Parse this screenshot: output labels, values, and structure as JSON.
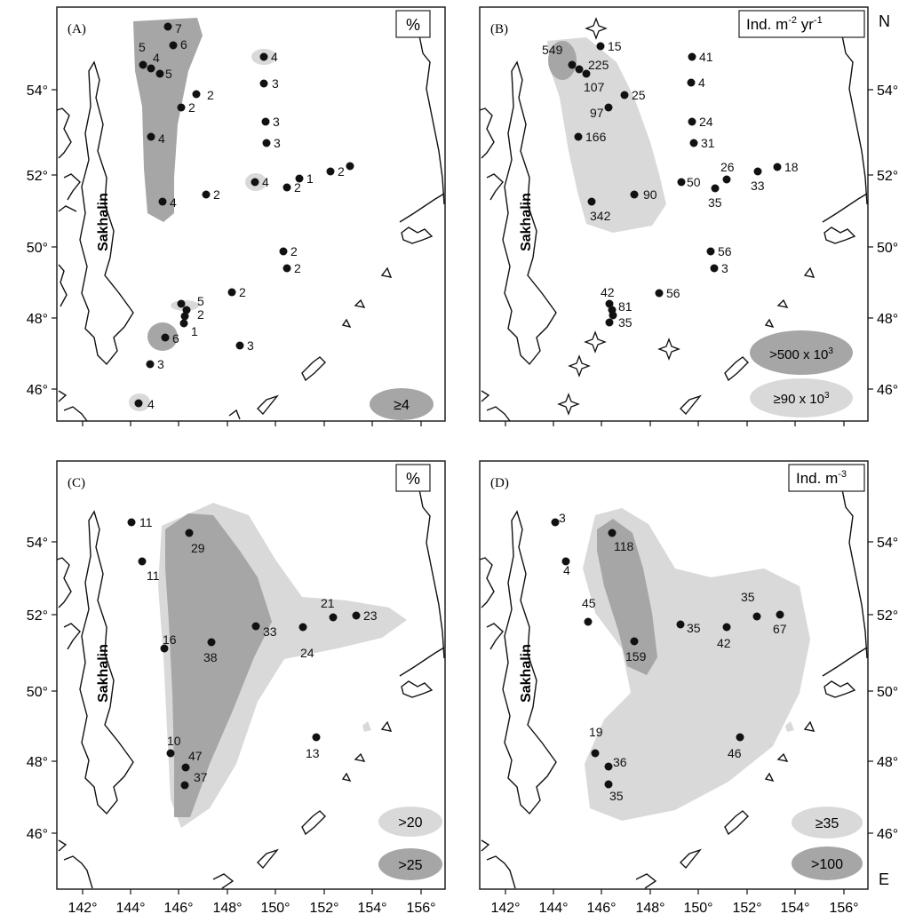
{
  "panels": {
    "A": {
      "label": "(A)",
      "unit": "%",
      "island": "Sakhalin",
      "legend": [
        "≥4"
      ],
      "stations": [
        "7",
        "6",
        "5",
        "4",
        "5",
        "4",
        "2",
        "2",
        "4",
        "3",
        "3",
        "3",
        "4",
        "1",
        "2",
        "2",
        "4",
        "2",
        "2",
        "2",
        "2",
        "5",
        "2",
        "1",
        "6",
        "3",
        "3",
        "4"
      ]
    },
    "B": {
      "label": "(B)",
      "unit": "Ind. m-2 yr-1",
      "unit_parts": {
        "base": "Ind. m",
        "exp1": "-2",
        "mid": " yr",
        "exp2": "-1"
      },
      "island": "Sakhalin",
      "legend": [
        {
          "base": ">500 x 10",
          "exp": "3"
        },
        {
          "base": "≥90 x 10",
          "exp": "3"
        }
      ],
      "stations": [
        "549",
        "15",
        "225",
        "107",
        "25",
        "97",
        "166",
        "41",
        "4",
        "24",
        "31",
        "50",
        "26",
        "18",
        "33",
        "35",
        "90",
        "342",
        "56",
        "3",
        "56",
        "42",
        "81",
        "35"
      ]
    },
    "C": {
      "label": "(C)",
      "unit": "%",
      "island": "Sakhalin",
      "legend": [
        ">20",
        ">25"
      ],
      "stations": [
        "11",
        "11",
        "29",
        "16",
        "38",
        "33",
        "24",
        "21",
        "23",
        "10",
        "47",
        "37",
        "13"
      ]
    },
    "D": {
      "label": "(D)",
      "unit": "Ind. m-3",
      "unit_parts": {
        "base": "Ind. m",
        "exp1": "-3"
      },
      "island": "Sakhalin",
      "legend": [
        "≥35",
        ">100"
      ],
      "stations": [
        "3",
        "4",
        "118",
        "45",
        "159",
        "35",
        "42",
        "35",
        "67",
        "19",
        "36",
        "35",
        "46"
      ]
    }
  },
  "axes": {
    "lat_ticks_left": [
      "54°",
      "52°",
      "50°",
      "48°",
      "46°"
    ],
    "lat_ticks_right": [
      "54°",
      "52°",
      "50°",
      "48°",
      "46°"
    ],
    "lon_ticks": [
      "142°",
      "144°",
      "146°",
      "148°",
      "150°",
      "152°",
      "154°",
      "156°"
    ],
    "north_label": "N",
    "east_label": "E"
  },
  "colors": {
    "light_gray": "#d9d9d9",
    "dark_gray": "#a6a6a6",
    "dot": "#111111"
  }
}
